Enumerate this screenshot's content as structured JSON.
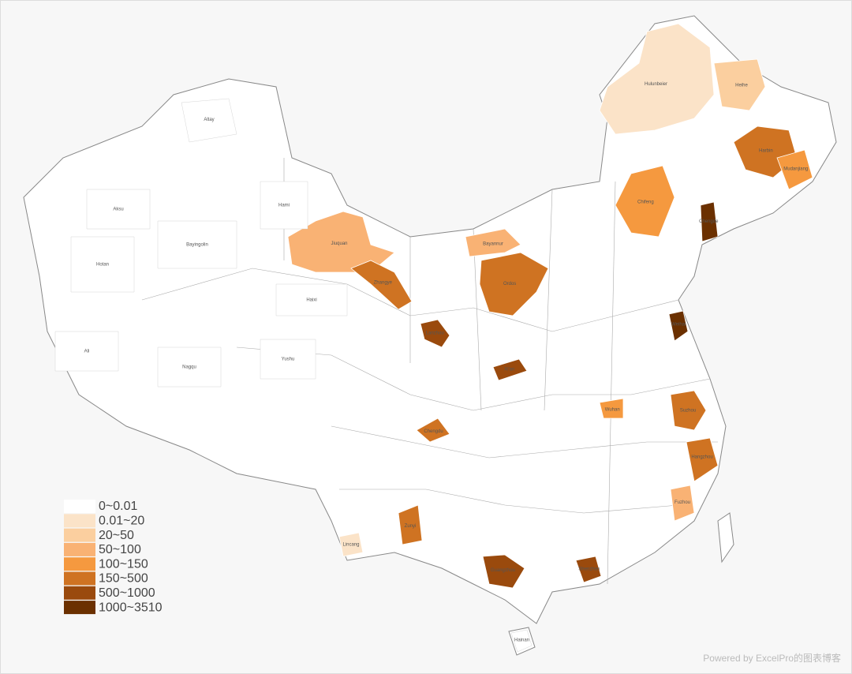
{
  "legend": {
    "items": [
      {
        "label": "0~0.01",
        "color": "#ffffff"
      },
      {
        "label": "0.01~20",
        "color": "#fbe3c8"
      },
      {
        "label": "20~50",
        "color": "#fbcf9f"
      },
      {
        "label": "50~100",
        "color": "#f9b274"
      },
      {
        "label": "100~150",
        "color": "#f5993f"
      },
      {
        "label": "150~500",
        "color": "#cf7322"
      },
      {
        "label": "500~1000",
        "color": "#9a4a0d"
      },
      {
        "label": "1000~3510",
        "color": "#6b3000"
      }
    ]
  },
  "regions": [
    {
      "name": "Hulunbeier",
      "class": 1
    },
    {
      "name": "Heihe",
      "class": 2
    },
    {
      "name": "Harbin",
      "class": 5
    },
    {
      "name": "Mudanjiang",
      "class": 4
    },
    {
      "name": "Chifeng",
      "class": 4
    },
    {
      "name": "Chengde",
      "class": 7
    },
    {
      "name": "Jiuquan",
      "class": 3
    },
    {
      "name": "Zhangye",
      "class": 5
    },
    {
      "name": "Ordos",
      "class": 5
    },
    {
      "name": "Bayannur",
      "class": 3
    },
    {
      "name": "Lanzhou",
      "class": 6
    },
    {
      "name": "Xi'an",
      "class": 6
    },
    {
      "name": "Weihai",
      "class": 7
    },
    {
      "name": "Suzhou",
      "class": 5
    },
    {
      "name": "Hangzhou",
      "class": 5
    },
    {
      "name": "Fuzhou",
      "class": 3
    },
    {
      "name": "Guangzhou",
      "class": 6
    },
    {
      "name": "Shenzhen",
      "class": 6
    },
    {
      "name": "Chengdu",
      "class": 5
    },
    {
      "name": "Zunyi",
      "class": 5
    },
    {
      "name": "Lincang",
      "class": 1
    },
    {
      "name": "Wuhan",
      "class": 4
    },
    {
      "name": "Altay",
      "class": 0
    },
    {
      "name": "Hami",
      "class": 0
    },
    {
      "name": "Hotan",
      "class": 0
    },
    {
      "name": "Ali",
      "class": 0
    },
    {
      "name": "Nagqu",
      "class": 0
    },
    {
      "name": "Haixi",
      "class": 0
    },
    {
      "name": "Bayingolin",
      "class": 0
    },
    {
      "name": "Aksu",
      "class": 0
    },
    {
      "name": "Yushu",
      "class": 0
    },
    {
      "name": "Hainan",
      "class": 0
    }
  ],
  "watermark": "Powered by ExcelPro的图表博客"
}
